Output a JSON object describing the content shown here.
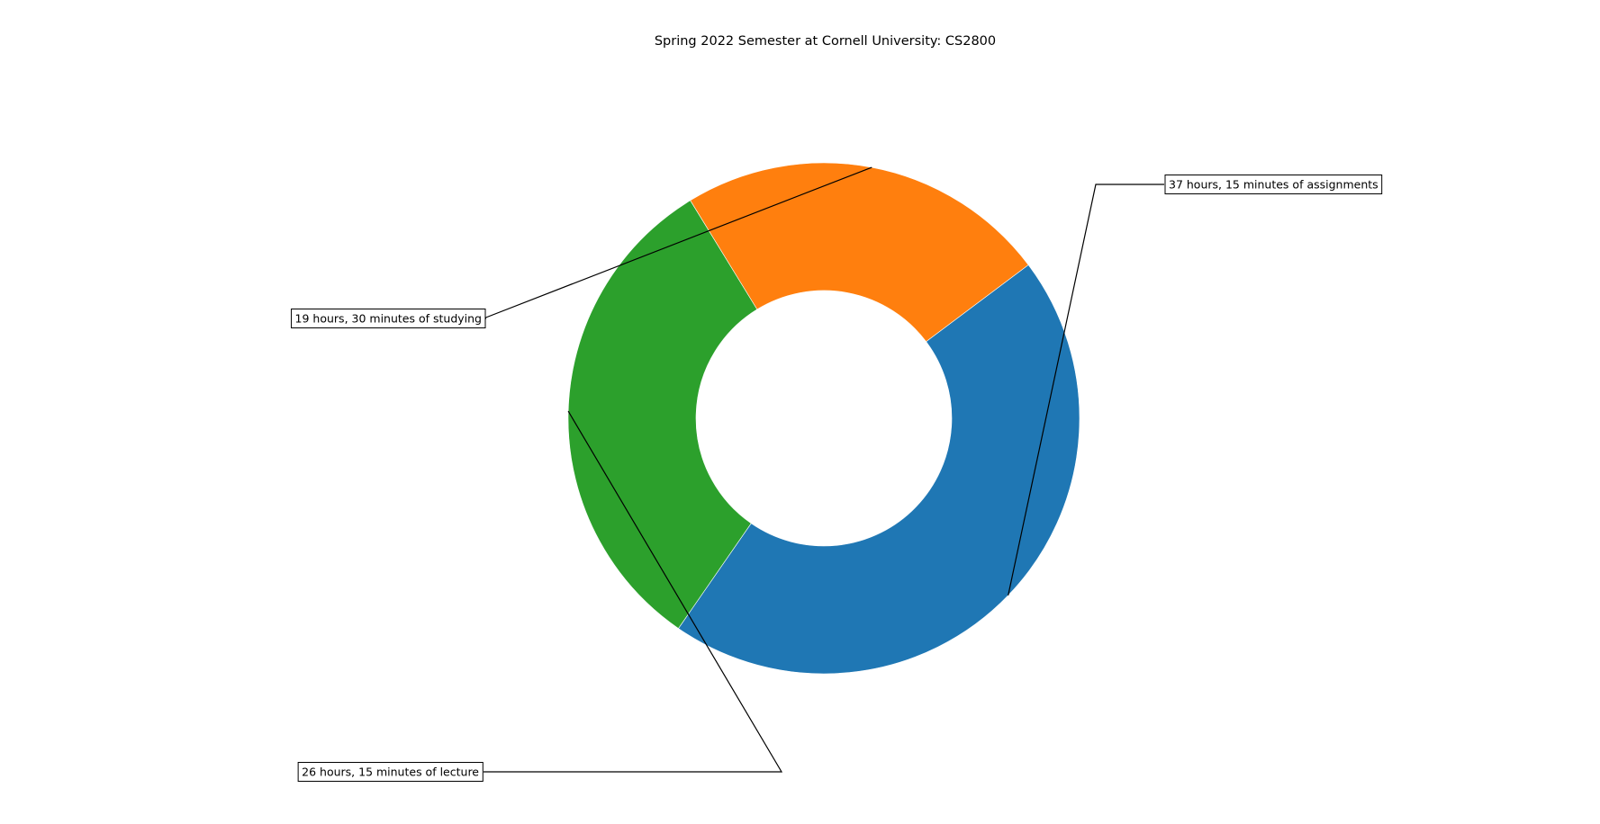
{
  "chart_data": {
    "type": "pie",
    "donut": true,
    "title": "Spring 2022 Semester at Cornell University: CS2800",
    "slices": [
      {
        "value": 37.25,
        "label": "37 hours, 15 minutes of assignments",
        "color": "#1f77b4"
      },
      {
        "value": 26.25,
        "label": "26 hours, 15 minutes of lecture",
        "color": "#2ca02c"
      },
      {
        "value": 19.5,
        "label": "19 hours, 30 minutes of studying",
        "color": "#ff7f0e"
      }
    ],
    "legend": "none",
    "grid": false
  }
}
